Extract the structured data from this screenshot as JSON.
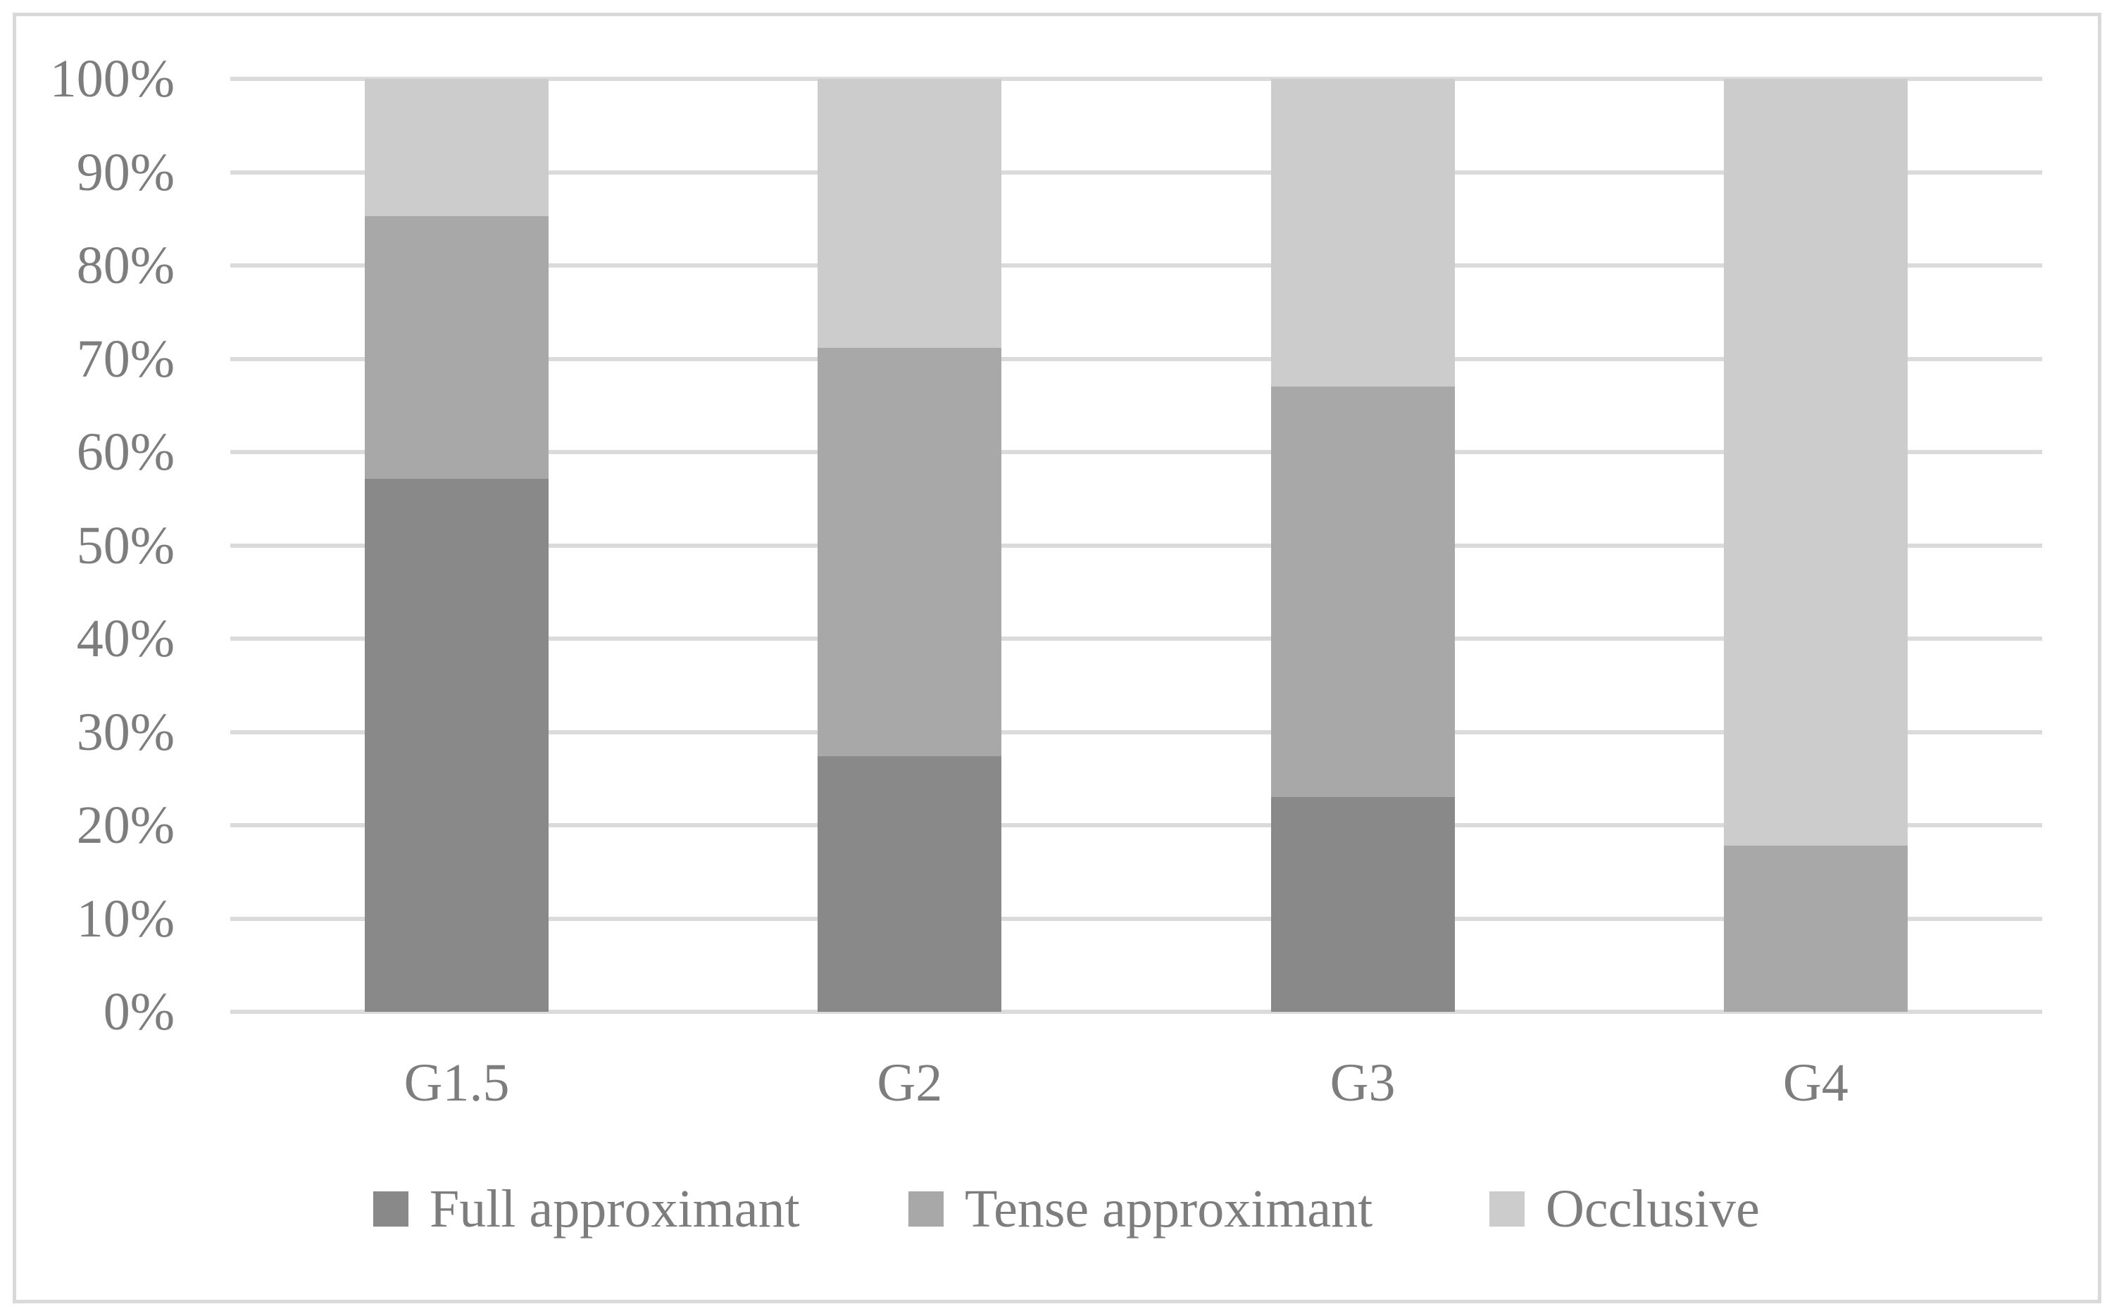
{
  "chart_data": {
    "type": "bar",
    "subtype": "stacked-100-percent",
    "title": "",
    "xlabel": "",
    "ylabel": "",
    "categories": [
      "G1.5",
      "G2",
      "G3",
      "G4"
    ],
    "series": [
      {
        "name": "Full approximant",
        "color": "#898989",
        "values": [
          57.1,
          27.4,
          23.0,
          0.0
        ]
      },
      {
        "name": "Tense approximant",
        "color": "#a8a8a8",
        "values": [
          28.2,
          43.8,
          44.0,
          17.8
        ]
      },
      {
        "name": "Occlusive",
        "color": "#cccccc",
        "values": [
          14.7,
          28.8,
          33.0,
          82.2
        ]
      }
    ],
    "y_ticks": [
      "100%",
      "90%",
      "80%",
      "70%",
      "60%",
      "50%",
      "40%",
      "30%",
      "20%",
      "10%",
      "0%"
    ],
    "ylim": [
      0,
      100
    ],
    "grid": "horizontal",
    "legend_position": "bottom"
  },
  "style": {
    "gridline_color": "#dbdbdb",
    "frame_border_color": "#d9d9d9",
    "text_color": "#7d7d7d",
    "background_color": "#ffffff"
  }
}
